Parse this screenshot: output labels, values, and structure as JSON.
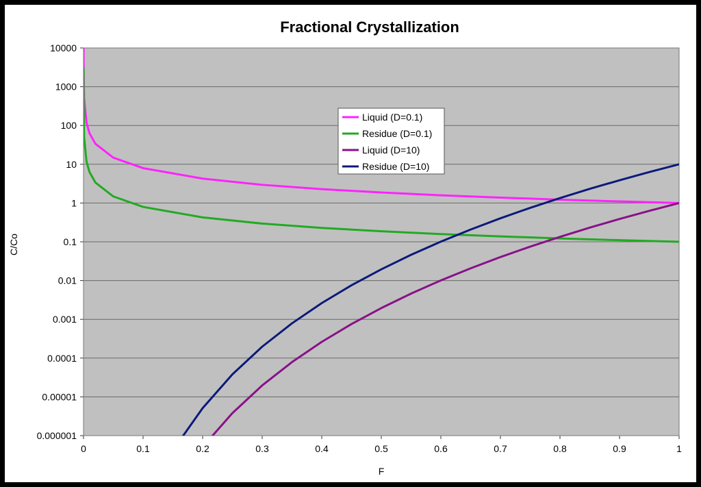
{
  "chart_data": {
    "type": "line",
    "title": "Fractional Crystallization",
    "xlabel": "F",
    "ylabel": "C/Co",
    "xlim": [
      0,
      1
    ],
    "ylim": [
      1e-06,
      10000
    ],
    "yscale": "log",
    "x_ticks": [
      "0",
      "0.1",
      "0.2",
      "0.3",
      "0.4",
      "0.5",
      "0.6",
      "0.7",
      "0.8",
      "0.9",
      "1"
    ],
    "y_ticks": [
      "0.000001",
      "0.00001",
      "0.0001",
      "0.001",
      "0.01",
      "0.1",
      "1",
      "10",
      "100",
      "1000",
      "10000"
    ],
    "grid": "horizontal",
    "legend_position": "center",
    "plot_background": "#c0c0c0",
    "series": [
      {
        "name": "Liquid (D=0.1)",
        "color": "#ff22ff",
        "x": [
          1e-05,
          0.0001,
          0.001,
          0.005,
          0.01,
          0.02,
          0.05,
          0.1,
          0.2,
          0.3,
          0.4,
          0.5,
          0.6,
          0.7,
          0.8,
          0.9,
          1.0
        ],
        "values": [
          31623,
          3981,
          501,
          118.8,
          63.1,
          33.7,
          14.8,
          7.94,
          4.26,
          2.95,
          2.28,
          1.87,
          1.58,
          1.38,
          1.22,
          1.1,
          1.0
        ]
      },
      {
        "name": "Residue (D=0.1)",
        "color": "#22aa22",
        "x": [
          1e-05,
          0.0001,
          0.001,
          0.005,
          0.01,
          0.02,
          0.05,
          0.1,
          0.2,
          0.3,
          0.4,
          0.5,
          0.6,
          0.7,
          0.8,
          0.9,
          1.0
        ],
        "values": [
          3162,
          398,
          50.1,
          11.9,
          6.31,
          3.37,
          1.48,
          0.794,
          0.426,
          0.295,
          0.228,
          0.187,
          0.158,
          0.138,
          0.122,
          0.11,
          0.1
        ]
      },
      {
        "name": "Liquid (D=10)",
        "color": "#881188",
        "x": [
          0.2,
          0.25,
          0.3,
          0.35,
          0.4,
          0.45,
          0.5,
          0.55,
          0.6,
          0.65,
          0.7,
          0.75,
          0.8,
          0.85,
          0.9,
          0.95,
          1.0
        ],
        "values": [
          5.12e-07,
          3.81e-06,
          1.97e-05,
          7.88e-05,
          0.000262,
          0.000757,
          0.00195,
          0.00461,
          0.0101,
          0.0207,
          0.0404,
          0.0751,
          0.134,
          0.232,
          0.387,
          0.63,
          1.0
        ]
      },
      {
        "name": "Residue (D=10)",
        "color": "#0a1a7a",
        "x": [
          0.16,
          0.2,
          0.25,
          0.3,
          0.35,
          0.4,
          0.45,
          0.5,
          0.55,
          0.6,
          0.65,
          0.7,
          0.75,
          0.8,
          0.85,
          0.9,
          0.95,
          1.0
        ],
        "values": [
          6.9e-07,
          5.12e-06,
          3.81e-05,
          0.000197,
          0.000788,
          0.00262,
          0.00757,
          0.0195,
          0.0461,
          0.101,
          0.207,
          0.404,
          0.751,
          1.34,
          2.32,
          3.87,
          6.3,
          10.0
        ]
      }
    ]
  }
}
